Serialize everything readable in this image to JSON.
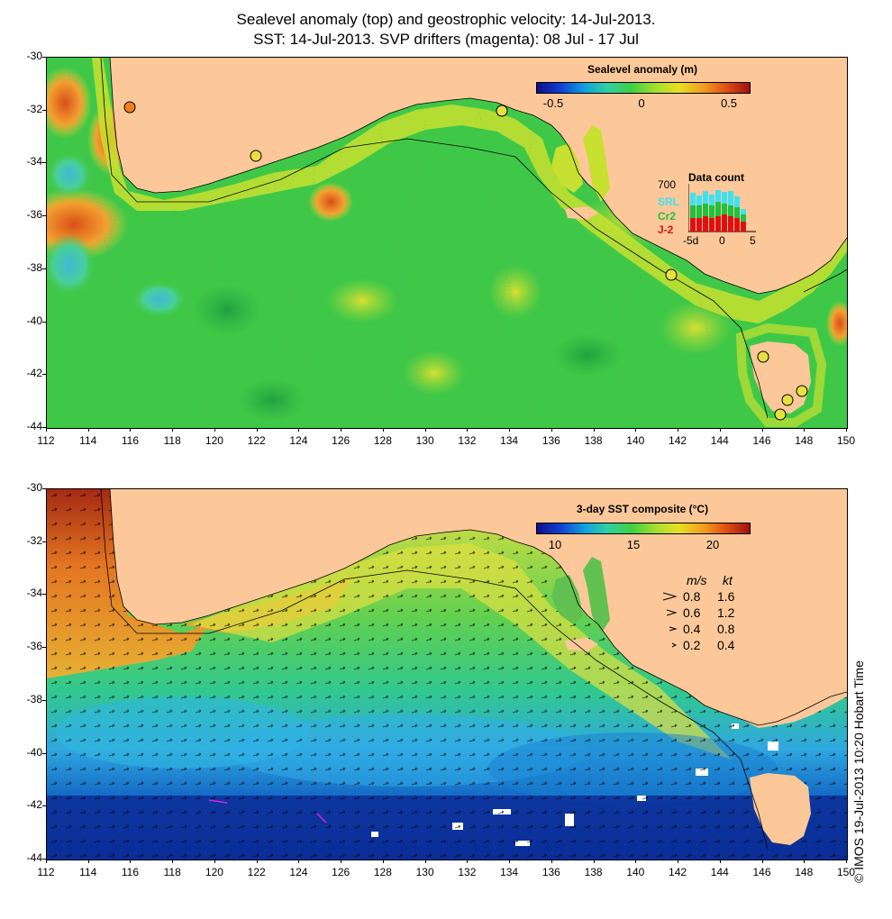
{
  "title": {
    "line1": "Sealevel anomaly (top) and geostrophic velocity: 14-Jul-2013.",
    "line2": "SST: 14-Jul-2013. SVP drifters (magenta): 08 Jul - 17 Jul"
  },
  "axes": {
    "y_labels": [
      "-30",
      "-32",
      "-34",
      "-36",
      "-38",
      "-40",
      "-42",
      "-44"
    ],
    "x_labels": [
      "112",
      "114",
      "116",
      "118",
      "120",
      "122",
      "124",
      "126",
      "128",
      "130",
      "132",
      "134",
      "136",
      "138",
      "140",
      "142",
      "144",
      "146",
      "148",
      "150"
    ]
  },
  "top_panel": {
    "colorbar_title": "Sealevel anomaly (m)",
    "colorbar_ticks": [
      "-0.5",
      "0",
      "0.5"
    ],
    "data_count": {
      "title": "Data count",
      "max_label": "700",
      "satellites": [
        {
          "name": "SRL",
          "color": "#40e0f0"
        },
        {
          "name": "Cr2",
          "color": "#20c040"
        },
        {
          "name": "J-2",
          "color": "#e01010"
        }
      ],
      "x_ticks": [
        "-5d",
        "0",
        "5"
      ]
    }
  },
  "bottom_panel": {
    "colorbar_title": "3-day SST composite (°C)",
    "colorbar_ticks": [
      "10",
      "15",
      "20"
    ],
    "velocity_legend": {
      "header_ms": "m/s",
      "header_kt": "kt",
      "rows": [
        {
          "ms": "0.8",
          "kt": "1.6"
        },
        {
          "ms": "0.6",
          "kt": "1.2"
        },
        {
          "ms": "0.4",
          "kt": "0.8"
        },
        {
          "ms": "0.2",
          "kt": "0.4"
        }
      ]
    }
  },
  "copyright": "© IMOS 19-Jul-2013 10:20 Hobart Time",
  "colors": {
    "land": "#fcc899",
    "ocean_top": "#3fce40",
    "sst_warm": "#f0a030",
    "sst_mid": "#32c95a",
    "sst_cold": "#0a3aa0"
  }
}
